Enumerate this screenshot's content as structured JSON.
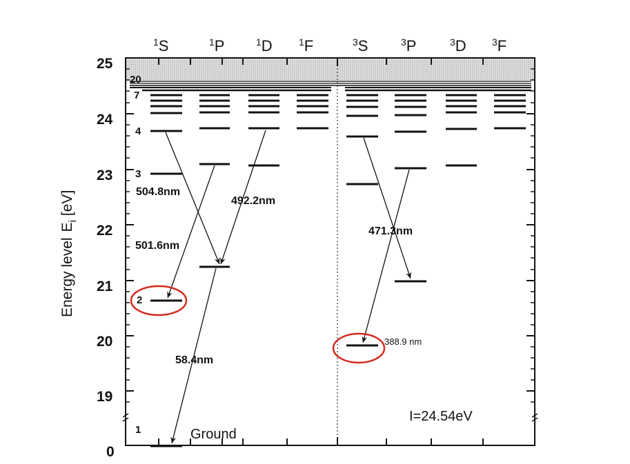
{
  "diagram": {
    "columns_singlet": [
      {
        "sup": "1",
        "letter": "S"
      },
      {
        "sup": "1",
        "letter": "P"
      },
      {
        "sup": "1",
        "letter": "D"
      },
      {
        "sup": "1",
        "letter": "F"
      }
    ],
    "columns_triplet": [
      {
        "sup": "3",
        "letter": "S"
      },
      {
        "sup": "3",
        "letter": "P"
      },
      {
        "sup": "3",
        "letter": "D"
      },
      {
        "sup": "3",
        "letter": "F"
      }
    ],
    "y_ticks": [
      "25",
      "24",
      "23",
      "22",
      "21",
      "20",
      "19",
      "0"
    ],
    "y_axis_title": "Energy level",
    "y_axis_symbol": "E",
    "y_axis_subscript": "i",
    "y_axis_unit": "[eV]",
    "level_numbers": [
      "20",
      "7",
      "4",
      "3",
      "2",
      "1"
    ],
    "transitions": [
      {
        "label": "504.8nm"
      },
      {
        "label": "492.2nm"
      },
      {
        "label": "501.6nm"
      },
      {
        "label": "58.4nm"
      },
      {
        "label": "471.3nm"
      },
      {
        "label": "388.9 nm"
      }
    ],
    "ground_label": "Ground",
    "ionization_label": "I=24.54eV",
    "highlight_color": "#d42a1e"
  }
}
